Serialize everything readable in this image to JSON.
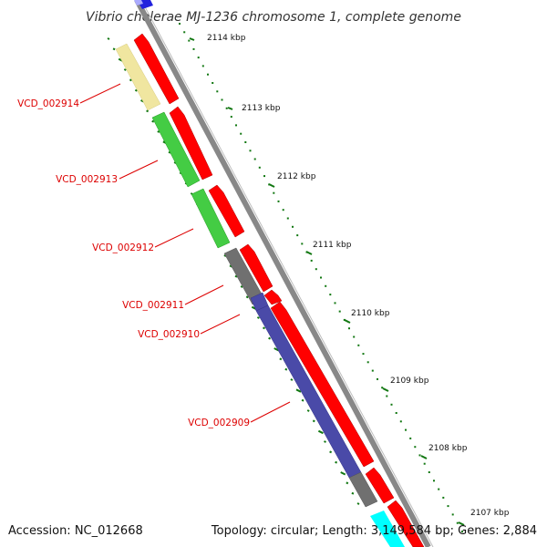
{
  "title": "Vibrio cholerae MJ-1236 chromosome 1, complete genome",
  "footer": {
    "accession": "Accession: NC_012668",
    "summary": "Topology: circular; Length: 3,149,584 bp; Genes: 2,884"
  },
  "scale": {
    "ticks": [
      "2114 kbp",
      "2113 kbp",
      "2112 kbp",
      "2111 kbp",
      "2110 kbp",
      "2109 kbp",
      "2108 kbp",
      "2107 kbp"
    ]
  },
  "genes": [
    {
      "id": "VCD_002914",
      "category_color": "#f0e6a0"
    },
    {
      "id": "VCD_002913",
      "category_color": "#44cc44"
    },
    {
      "id": "VCD_002912",
      "category_color": "#44cc44"
    },
    {
      "id": "VCD_002911",
      "category_color": "#707070"
    },
    {
      "id": "VCD_002910",
      "category_color": "#4a4aa8"
    },
    {
      "id": "VCD_002909",
      "category_color": "#4a4aa8"
    }
  ],
  "colors": {
    "cds": "#ff0000",
    "backbone": "#888888",
    "tick": "#117711",
    "label": "#dd0000"
  }
}
